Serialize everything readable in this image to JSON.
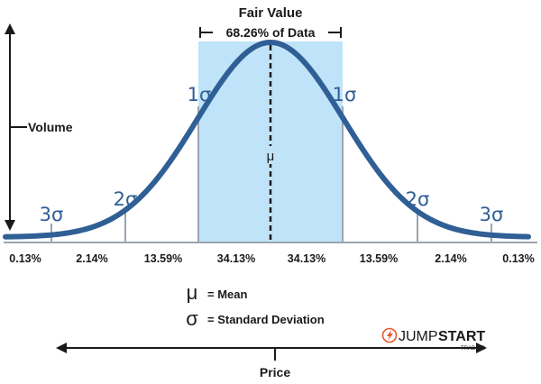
{
  "title": "Fair Value",
  "subtitle": "68.26% of Data",
  "y_axis_label": "Volume",
  "x_axis_label": "Price",
  "mean_symbol": "μ",
  "sigma_labels": {
    "left_1": "1σ",
    "right_1": "1σ",
    "left_2": "2σ",
    "right_2": "2σ",
    "left_3": "3σ",
    "right_3": "3σ"
  },
  "percent_labels": [
    "0.13%",
    "2.14%",
    "13.59%",
    "34.13%",
    "34.13%",
    "13.59%",
    "2.14%",
    "0.13%"
  ],
  "legend": {
    "mean_symbol": "μ",
    "mean_text": "= Mean",
    "sigma_symbol": "σ",
    "sigma_text": "= Standard Deviation"
  },
  "logo": {
    "word_light": "JUMP",
    "word_bold": "START",
    "sub": "TRADING"
  },
  "colors": {
    "curve": "#2f5f95",
    "band": "#bfe3f8",
    "axis": "#9aa5b1",
    "text": "#1a1a1a",
    "logo_accent": "#e8572a"
  }
}
